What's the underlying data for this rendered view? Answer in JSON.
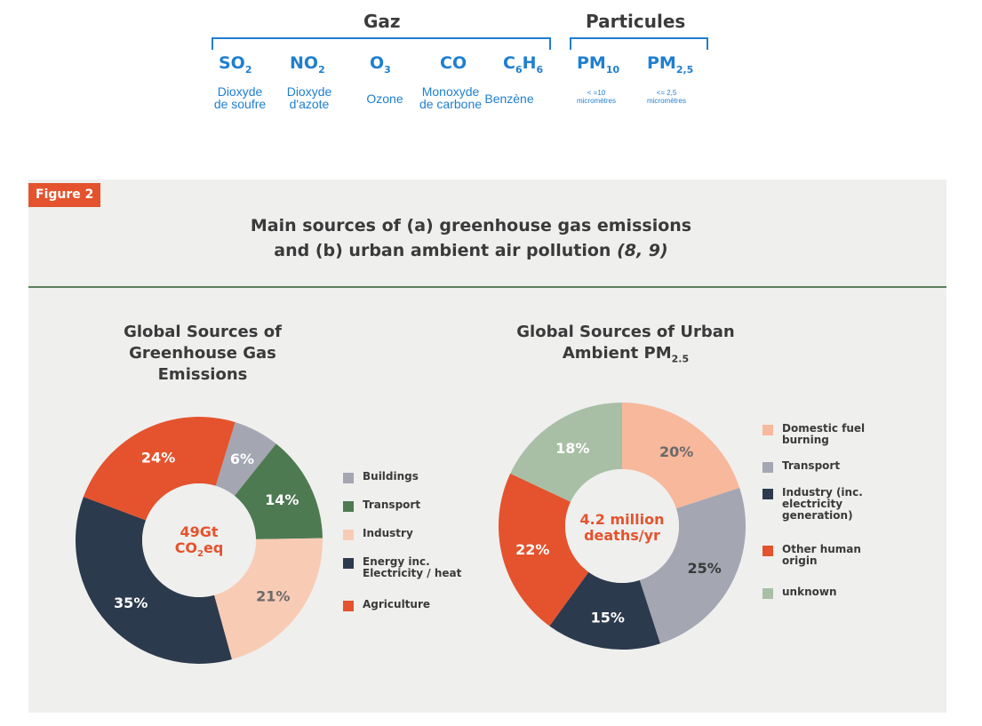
{
  "gases_header": {
    "groups": {
      "gaz": "Gaz",
      "particules": "Particules"
    },
    "items": [
      {
        "symbol": "SO",
        "sub": "2",
        "tail": "",
        "name_line1": "Dioxyde",
        "name_line2": "de soufre"
      },
      {
        "symbol": "NO",
        "sub": "2",
        "tail": "",
        "name_line1": "Dioxyde",
        "name_line2": "d'azote"
      },
      {
        "symbol": "O",
        "sub": "3",
        "tail": "",
        "name_line1": "Ozone",
        "name_line2": ""
      },
      {
        "symbol": "CO",
        "sub": "",
        "tail": "",
        "name_line1": "Monoxyde",
        "name_line2": "de carbone"
      },
      {
        "symbol": "C",
        "sub": "6",
        "tail": "H",
        "tail_sub": "6",
        "name_line1": "Benzène",
        "name_line2": ""
      },
      {
        "symbol": "PM",
        "sub": "10",
        "tail": "",
        "name_line1": "< =10",
        "name_line2": "micromètres"
      },
      {
        "symbol": "PM",
        "sub": "2,5",
        "tail": "",
        "name_line1": "<= 2,5",
        "name_line2": "micromètres"
      }
    ]
  },
  "figure": {
    "badge": "Figure 2",
    "title_line1": "Main sources of (a) greenhouse gas emissions",
    "title_line2": "and (b) urban ambient air pollution",
    "title_cite": "(8, 9)"
  },
  "chart_data": [
    {
      "type": "pie",
      "title_line1": "Global Sources of",
      "title_line2": "Greenhouse Gas",
      "title_line3": "Emissions",
      "center_line1": "49Gt",
      "center_line2": "CO",
      "center_sub": "2",
      "center_tail": "eq",
      "categories": [
        "Buildings",
        "Transport",
        "Industry",
        "Energy inc. Electricity / heat",
        "Agriculture"
      ],
      "values": [
        6,
        14,
        21,
        35,
        24
      ],
      "labels": [
        "6%",
        "14%",
        "21%",
        "35%",
        "24%"
      ],
      "colors": [
        "#a4a6b2",
        "#4e7a52",
        "#f8cbb4",
        "#2c3a4d",
        "#e4532d"
      ],
      "label_colors": [
        "#ffffff",
        "#ffffff",
        "#6a6a6a",
        "#ffffff",
        "#ffffff"
      ],
      "legend": [
        {
          "line1": "Buildings",
          "line2": ""
        },
        {
          "line1": "Transport",
          "line2": ""
        },
        {
          "line1": "Industry",
          "line2": ""
        },
        {
          "line1": "Energy inc.",
          "line2": "Electricity / heat"
        },
        {
          "line1": "Agriculture",
          "line2": ""
        }
      ]
    },
    {
      "type": "pie",
      "title_line1": "Global Sources of Urban",
      "title_line2": "Ambient PM",
      "title_sub": "2.5",
      "center_line1": "4.2 million",
      "center_line2": "deaths/yr",
      "categories": [
        "Domestic fuel burning",
        "Transport",
        "Industry (inc. electricity generation)",
        "Other human origin",
        "unknown"
      ],
      "values": [
        20,
        25,
        15,
        22,
        18
      ],
      "labels": [
        "20%",
        "25%",
        "15%",
        "22%",
        "18%"
      ],
      "colors": [
        "#f8b89b",
        "#a4a6b2",
        "#2c3a4d",
        "#e4532d",
        "#a8bfa6"
      ],
      "label_colors": [
        "#6a6a6a",
        "#3a3a3a",
        "#ffffff",
        "#ffffff",
        "#ffffff"
      ],
      "legend": [
        {
          "line1": "Domestic fuel",
          "line2": "burning",
          "line3": ""
        },
        {
          "line1": "Transport",
          "line2": "",
          "line3": ""
        },
        {
          "line1": "Industry (inc.",
          "line2": "electricity",
          "line3": "generation)"
        },
        {
          "line1": "Other human",
          "line2": "origin",
          "line3": ""
        },
        {
          "line1": "unknown",
          "line2": "",
          "line3": ""
        }
      ]
    }
  ]
}
